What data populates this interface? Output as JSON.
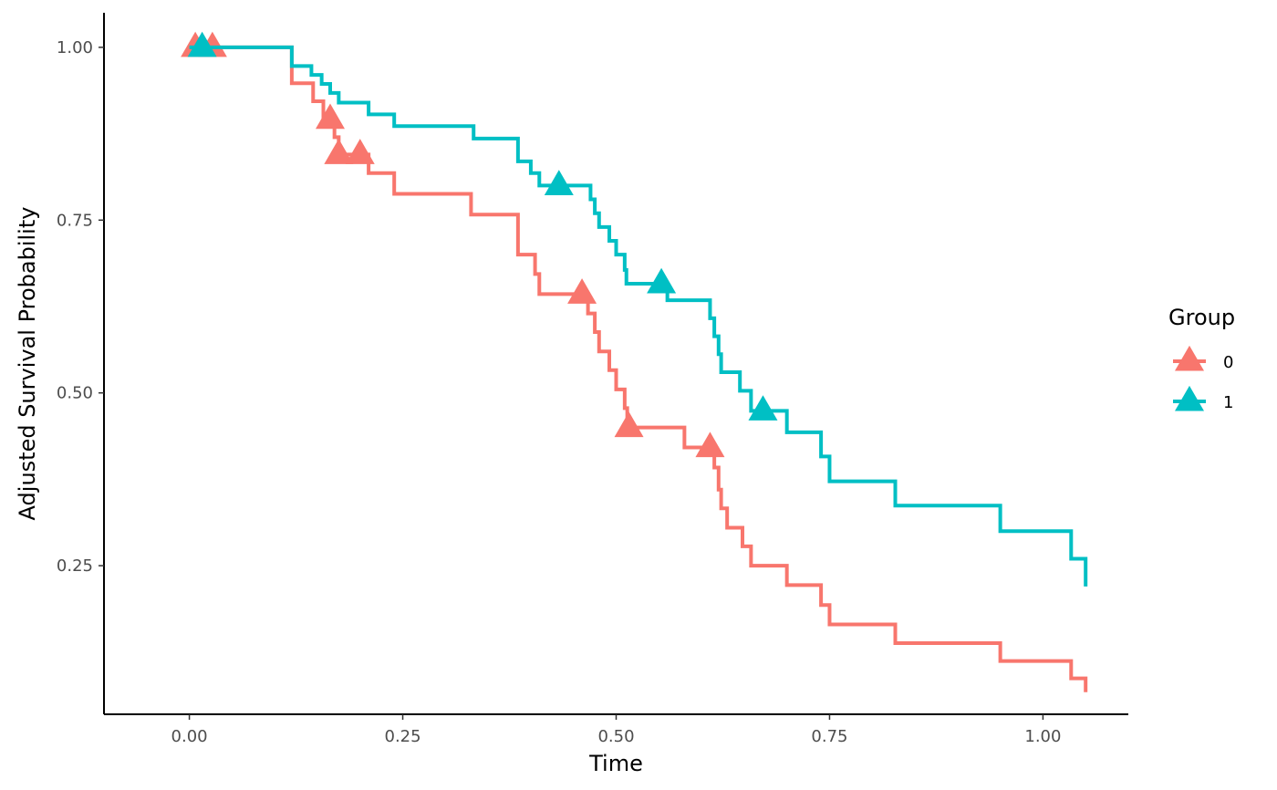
{
  "chart_data": {
    "type": "line",
    "step": true,
    "xlabel": "Time",
    "ylabel": "Adjusted Survival Probability",
    "xlim": [
      -0.1,
      1.1
    ],
    "ylim": [
      0.035,
      1.05
    ],
    "x_ticks": [
      0.0,
      0.25,
      0.5,
      0.75,
      1.0
    ],
    "x_tick_labels": [
      "0.00",
      "0.25",
      "0.50",
      "0.75",
      "1.00"
    ],
    "y_ticks": [
      0.25,
      0.5,
      0.75,
      1.0
    ],
    "y_tick_labels": [
      "0.25",
      "0.50",
      "0.75",
      "1.00"
    ],
    "grid": false,
    "legend": {
      "title": "Group",
      "position": "right"
    },
    "series": [
      {
        "name": "0",
        "color": "#F8766D",
        "steps": [
          [
            0.0,
            1.0
          ],
          [
            0.12,
            0.948
          ],
          [
            0.145,
            0.922
          ],
          [
            0.157,
            0.896
          ],
          [
            0.17,
            0.87
          ],
          [
            0.175,
            0.845
          ],
          [
            0.21,
            0.818
          ],
          [
            0.24,
            0.788
          ],
          [
            0.33,
            0.758
          ],
          [
            0.385,
            0.7
          ],
          [
            0.405,
            0.672
          ],
          [
            0.41,
            0.643
          ],
          [
            0.465,
            0.643
          ],
          [
            0.467,
            0.615
          ],
          [
            0.475,
            0.588
          ],
          [
            0.48,
            0.56
          ],
          [
            0.492,
            0.533
          ],
          [
            0.5,
            0.505
          ],
          [
            0.51,
            0.478
          ],
          [
            0.513,
            0.45
          ],
          [
            0.58,
            0.421
          ],
          [
            0.615,
            0.392
          ],
          [
            0.62,
            0.36
          ],
          [
            0.623,
            0.333
          ],
          [
            0.63,
            0.305
          ],
          [
            0.648,
            0.278
          ],
          [
            0.658,
            0.25
          ],
          [
            0.7,
            0.222
          ],
          [
            0.74,
            0.193
          ],
          [
            0.75,
            0.165
          ],
          [
            0.827,
            0.138
          ],
          [
            0.95,
            0.112
          ],
          [
            1.033,
            0.087
          ],
          [
            1.05,
            0.067
          ]
        ],
        "censor_x": [
          0.007,
          0.027,
          0.165,
          0.175,
          0.2,
          0.46,
          0.515,
          0.61
        ]
      },
      {
        "name": "1",
        "color": "#00BFC4",
        "steps": [
          [
            0.0,
            1.0
          ],
          [
            0.12,
            0.973
          ],
          [
            0.143,
            0.96
          ],
          [
            0.155,
            0.947
          ],
          [
            0.165,
            0.934
          ],
          [
            0.175,
            0.92
          ],
          [
            0.21,
            0.903
          ],
          [
            0.24,
            0.886
          ],
          [
            0.333,
            0.868
          ],
          [
            0.385,
            0.835
          ],
          [
            0.4,
            0.818
          ],
          [
            0.41,
            0.8
          ],
          [
            0.47,
            0.78
          ],
          [
            0.475,
            0.76
          ],
          [
            0.48,
            0.74
          ],
          [
            0.492,
            0.72
          ],
          [
            0.5,
            0.7
          ],
          [
            0.51,
            0.678
          ],
          [
            0.512,
            0.658
          ],
          [
            0.56,
            0.634
          ],
          [
            0.61,
            0.608
          ],
          [
            0.615,
            0.582
          ],
          [
            0.62,
            0.556
          ],
          [
            0.623,
            0.53
          ],
          [
            0.645,
            0.503
          ],
          [
            0.658,
            0.474
          ],
          [
            0.7,
            0.443
          ],
          [
            0.74,
            0.408
          ],
          [
            0.75,
            0.372
          ],
          [
            0.827,
            0.337
          ],
          [
            0.95,
            0.3
          ],
          [
            1.033,
            0.26
          ],
          [
            1.05,
            0.22
          ]
        ],
        "censor_x": [
          0.015,
          0.433,
          0.553,
          0.672
        ]
      }
    ]
  }
}
